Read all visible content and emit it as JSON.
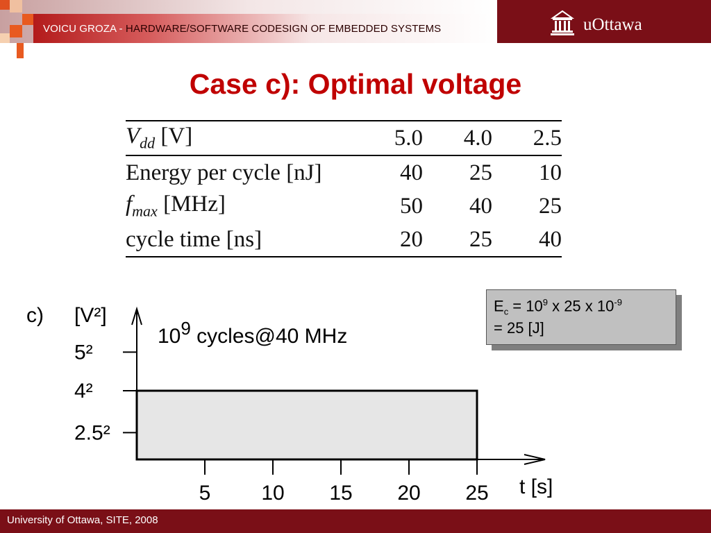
{
  "header": {
    "title_author": "VOICU GROZA - ",
    "title_course": "HARDWARE/SOFTWARE CODESIGN OF EMBEDDED SYSTEMS",
    "logo_text": "uOttawa",
    "logo_icon": "building-icon"
  },
  "slide": {
    "title": "Case c): Optimal voltage"
  },
  "table": {
    "rows": [
      {
        "label_main": "V",
        "label_sub": "dd",
        "label_rest": " [V]",
        "values": [
          "5.0",
          "4.0",
          "2.5"
        ]
      },
      {
        "label_main": "Energy per cycle [nJ]",
        "label_sub": "",
        "label_rest": "",
        "values": [
          "40",
          "25",
          "10"
        ]
      },
      {
        "label_main": "f",
        "label_sub": "max",
        "label_rest": " [MHz]",
        "values": [
          "50",
          "40",
          "25"
        ]
      },
      {
        "label_main": "cycle time [ns]",
        "label_sub": "",
        "label_rest": "",
        "values": [
          "20",
          "25",
          "40"
        ]
      }
    ]
  },
  "chart_data": {
    "type": "area",
    "case_label": "c)",
    "ylabel": "[V²]",
    "xlabel": "t [s]",
    "annotation_base": "10",
    "annotation_exp": "9",
    "annotation_rest": " cycles@40 MHz",
    "y_ticks": [
      {
        "label": "5²",
        "value": 25
      },
      {
        "label": "4²",
        "value": 16
      },
      {
        "label": "2.5²",
        "value": 6.25
      }
    ],
    "x_ticks": [
      5,
      10,
      15,
      20,
      25
    ],
    "xlim": [
      0,
      30
    ],
    "ylim": [
      0,
      36
    ],
    "series": [
      {
        "x_start": 0,
        "x_end": 25,
        "y": 16
      }
    ],
    "fill_color": "#e6e6e6",
    "stroke_color": "#000000"
  },
  "note": {
    "line1_pre": "E",
    "line1_sub": "c",
    "line1_mid": " = 10",
    "line1_sup1": "9",
    "line1_mid2": " x 25 x 10",
    "line1_sup2": "-9",
    "line2": "= 25 [J]"
  },
  "footer": {
    "text": "University of Ottawa, SITE, 2008"
  },
  "colors": {
    "brand": "#7a0f17",
    "title": "#c00000"
  }
}
